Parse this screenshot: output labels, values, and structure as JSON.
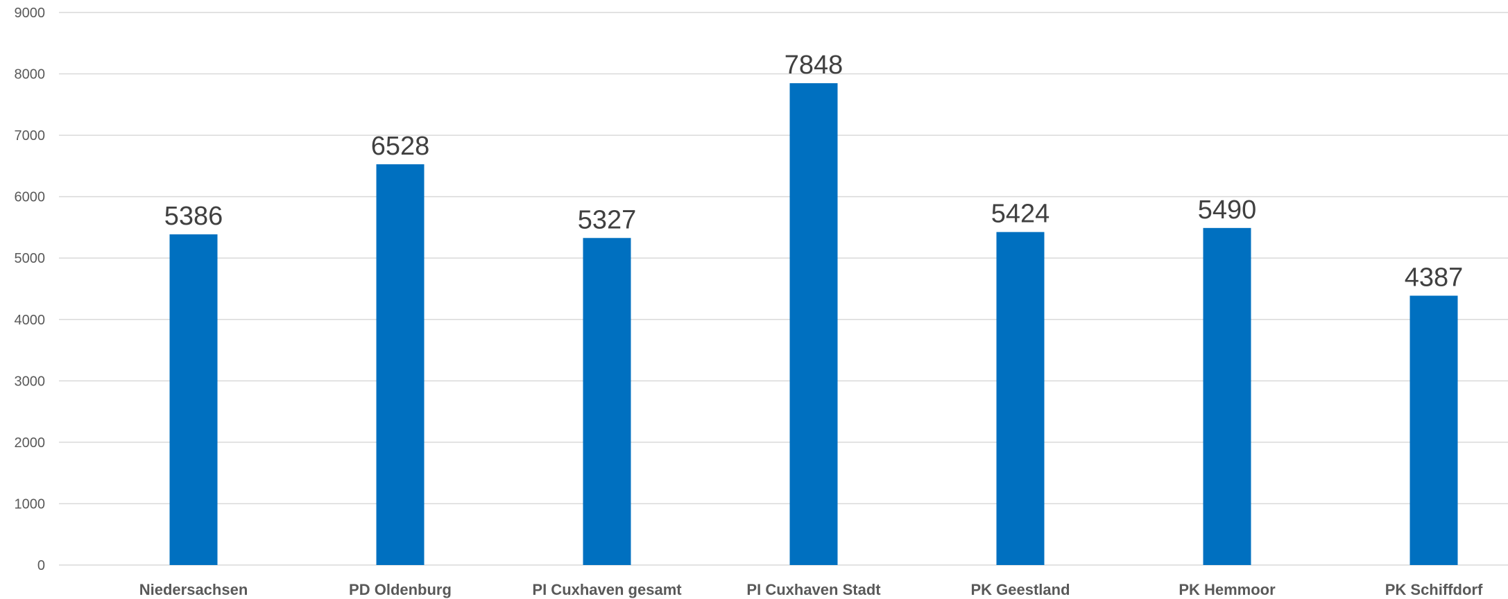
{
  "chart_data": {
    "type": "bar",
    "title": "",
    "xlabel": "",
    "ylabel": "",
    "categories": [
      "Niedersachsen",
      "PD Oldenburg",
      "PI Cuxhaven gesamt",
      "PI Cuxhaven Stadt",
      "PK Geestland",
      "PK Hemmoor",
      "PK Schiffdorf"
    ],
    "series": [
      {
        "values": [
          5386,
          6528,
          5327,
          7848,
          5424,
          5490,
          4387
        ],
        "color": "#0070C0"
      }
    ],
    "data_labels": [
      "5386",
      "6528",
      "5327",
      "7848",
      "5424",
      "5490",
      "4387"
    ],
    "ylim": [
      0,
      9000
    ],
    "yticks": [
      0,
      1000,
      2000,
      3000,
      4000,
      5000,
      6000,
      7000,
      8000,
      9000
    ],
    "ytick_labels": [
      "0",
      "1000",
      "2000",
      "3000",
      "4000",
      "5000",
      "6000",
      "7000",
      "8000",
      "9000"
    ],
    "grid": true,
    "legend": "none"
  }
}
